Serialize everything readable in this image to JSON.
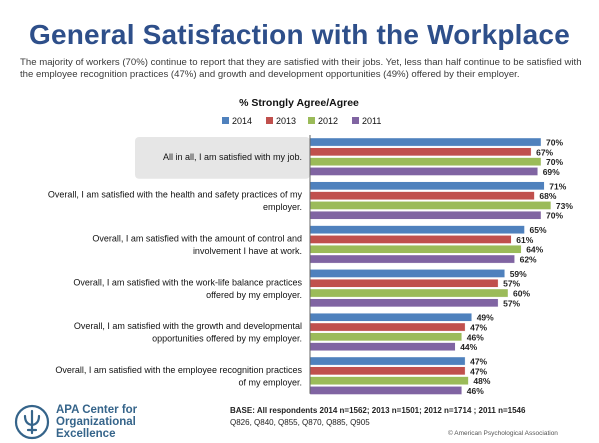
{
  "page": {
    "title": "General Satisfaction with the Workplace",
    "subtitle": "The majority of workers (70%) continue to report that they are satisfied with their jobs. Yet, less than half continue to be satisfied with the employee recognition practices (47%) and growth and development opportunities (49%) offered by their employer."
  },
  "chart_data": {
    "type": "bar",
    "orientation": "horizontal",
    "title": "% Strongly Agree/Agree",
    "categories": [
      "All in all, I am satisfied with my job.",
      "Overall, I am satisfied with the health and safety practices of my employer.",
      "Overall, I am satisfied with the amount of control and involvement I have at work.",
      "Overall, I am satisfied with the work-life balance practices offered by my employer.",
      "Overall, I am satisfied with the growth and developmental opportunities offered by my employer.",
      "Overall, I am satisfied with the employee recognition practices of my employer."
    ],
    "category_lines": [
      [
        "All in all, I am satisfied with my job."
      ],
      [
        "Overall, I am satisfied with the health and safety practices of my",
        "employer."
      ],
      [
        "Overall, I am satisfied with the amount of control and",
        "involvement I have at work."
      ],
      [
        "Overall, I am satisfied with the work-life balance practices",
        "offered by my employer."
      ],
      [
        "Overall, I am satisfied with the growth and developmental",
        "opportunities offered by my employer."
      ],
      [
        "Overall, I am satisfied with the employee recognition practices",
        "of my employer."
      ]
    ],
    "series": [
      {
        "name": "2014",
        "color": "#4f81bd",
        "values": [
          70,
          71,
          65,
          59,
          49,
          47
        ]
      },
      {
        "name": "2013",
        "color": "#c0504d",
        "values": [
          67,
          68,
          61,
          57,
          47,
          47
        ]
      },
      {
        "name": "2012",
        "color": "#9bbb59",
        "values": [
          70,
          73,
          64,
          60,
          46,
          48
        ]
      },
      {
        "name": "2011",
        "color": "#8064a2",
        "values": [
          69,
          70,
          62,
          57,
          44,
          46
        ]
      }
    ],
    "value_suffix": "%",
    "xlim": [
      0,
      100
    ],
    "legend_position": "top",
    "highlighted_category_index": 0,
    "grid": false
  },
  "footer": {
    "org_name_lines": [
      "APA Center for",
      "Organizational",
      "Excellence"
    ],
    "base_label": "BASE: All respondents 2014 n=1562; 2013 n=1501; 2012 n=1714 ; 2011 n=1546",
    "questions": "Q826, Q840, Q855, Q870, Q885, Q905",
    "copyright": "© American Psychological Association"
  },
  "colors": {
    "title": "#2e4f8a",
    "highlight_band": "#e6e6e6",
    "logo": "#35648a"
  }
}
